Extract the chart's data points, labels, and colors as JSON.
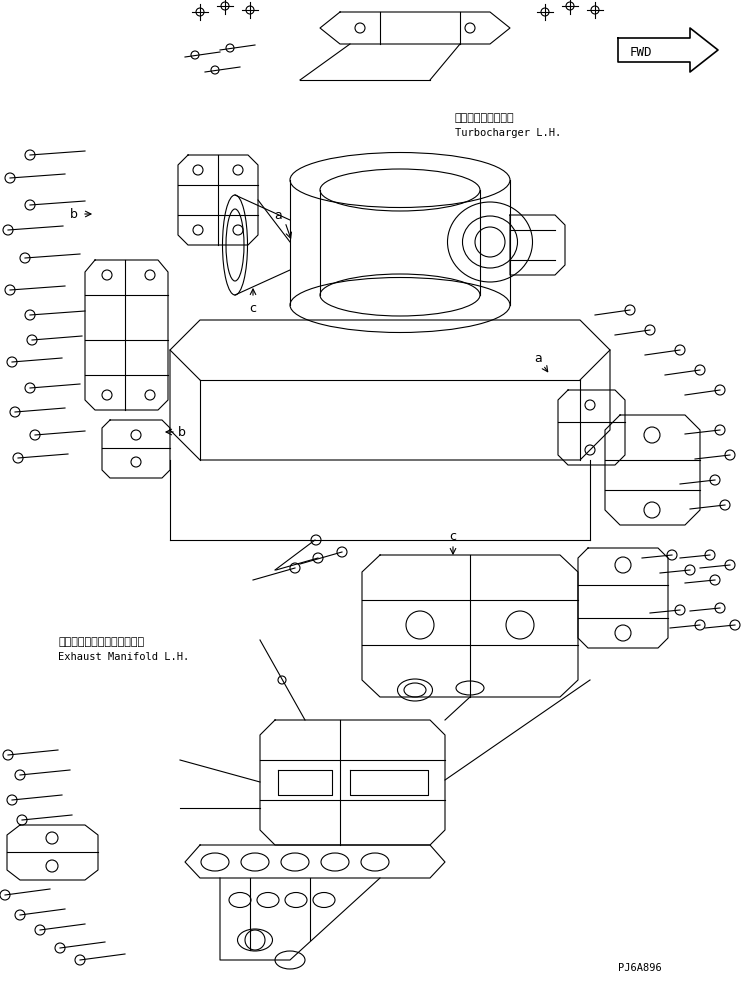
{
  "title": "",
  "background_color": "#ffffff",
  "line_color": "#000000",
  "label_a1": "a",
  "label_a2": "a",
  "label_b1": "b",
  "label_b2": "b",
  "label_c1": "c",
  "label_c2": "c",
  "text_turbo_jp": "ターボチャージャ左",
  "text_turbo_en": "Turbocharger L.H.",
  "text_exhaust_jp": "エキゾーストマニホールド左",
  "text_exhaust_en": "Exhaust Manifold L.H.",
  "text_part_num": "PJ6A896",
  "fwd_text": "FWD",
  "figsize": [
    7.56,
    9.89
  ],
  "dpi": 100
}
